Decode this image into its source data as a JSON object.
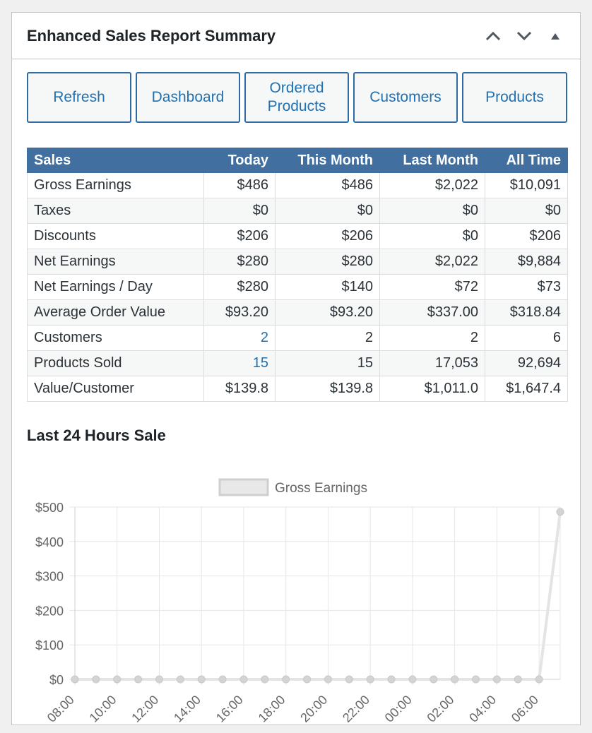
{
  "widget": {
    "title": "Enhanced Sales Report Summary"
  },
  "buttons": [
    {
      "label": "Refresh"
    },
    {
      "label": "Dashboard"
    },
    {
      "label": "Ordered Products"
    },
    {
      "label": "Customers"
    },
    {
      "label": "Products"
    }
  ],
  "table": {
    "headers": [
      "Sales",
      "Today",
      "This Month",
      "Last Month",
      "All Time"
    ],
    "rows": [
      {
        "label": "Gross Earnings",
        "today": "$486",
        "this_month": "$486",
        "last_month": "$2,022",
        "all_time": "$10,091"
      },
      {
        "label": "Taxes",
        "today": "$0",
        "this_month": "$0",
        "last_month": "$0",
        "all_time": "$0"
      },
      {
        "label": "Discounts",
        "today": "$206",
        "this_month": "$206",
        "last_month": "$0",
        "all_time": "$206"
      },
      {
        "label": "Net Earnings",
        "today": "$280",
        "this_month": "$280",
        "last_month": "$2,022",
        "all_time": "$9,884"
      },
      {
        "label": "Net Earnings / Day",
        "today": "$280",
        "this_month": "$140",
        "last_month": "$72",
        "all_time": "$73"
      },
      {
        "label": "Average Order Value",
        "today": "$93.20",
        "this_month": "$93.20",
        "last_month": "$337.00",
        "all_time": "$318.84"
      },
      {
        "label": "Customers",
        "today": "2",
        "this_month": "2",
        "last_month": "2",
        "all_time": "6"
      },
      {
        "label": "Products Sold",
        "today": "15",
        "this_month": "15",
        "last_month": "17,053",
        "all_time": "92,694"
      },
      {
        "label": "Value/Customer",
        "today": "$139.8",
        "this_month": "$139.8",
        "last_month": "$1,011.0",
        "all_time": "$1,647.4"
      }
    ]
  },
  "chart_section": {
    "title": "Last 24 Hours Sale"
  },
  "colors": {
    "accent": "#2271b1",
    "table_header": "#416fa0",
    "series_line": "#e4e4e4",
    "series_point": "#d4d4d4"
  },
  "chart_data": {
    "type": "line",
    "title": "",
    "xlabel": "",
    "ylabel": "",
    "grid": true,
    "legend_position": "top-center",
    "ylim": [
      0,
      500
    ],
    "y_ticks": [
      "$0",
      "$100",
      "$200",
      "$300",
      "$400",
      "$500"
    ],
    "y_tick_values": [
      0,
      100,
      200,
      300,
      400,
      500
    ],
    "x_tick_labels": [
      "08:00",
      "10:00",
      "12:00",
      "14:00",
      "16:00",
      "18:00",
      "20:00",
      "22:00",
      "00:00",
      "02:00",
      "04:00",
      "06:00"
    ],
    "x": [
      "08:00",
      "09:00",
      "10:00",
      "11:00",
      "12:00",
      "13:00",
      "14:00",
      "15:00",
      "16:00",
      "17:00",
      "18:00",
      "19:00",
      "20:00",
      "21:00",
      "22:00",
      "23:00",
      "00:00",
      "01:00",
      "02:00",
      "03:00",
      "04:00",
      "05:00",
      "06:00",
      "07:00"
    ],
    "series": [
      {
        "name": "Gross Earnings",
        "values": [
          0,
          0,
          0,
          0,
          0,
          0,
          0,
          0,
          0,
          0,
          0,
          0,
          0,
          0,
          0,
          0,
          0,
          0,
          0,
          0,
          0,
          0,
          0,
          486
        ]
      }
    ]
  }
}
